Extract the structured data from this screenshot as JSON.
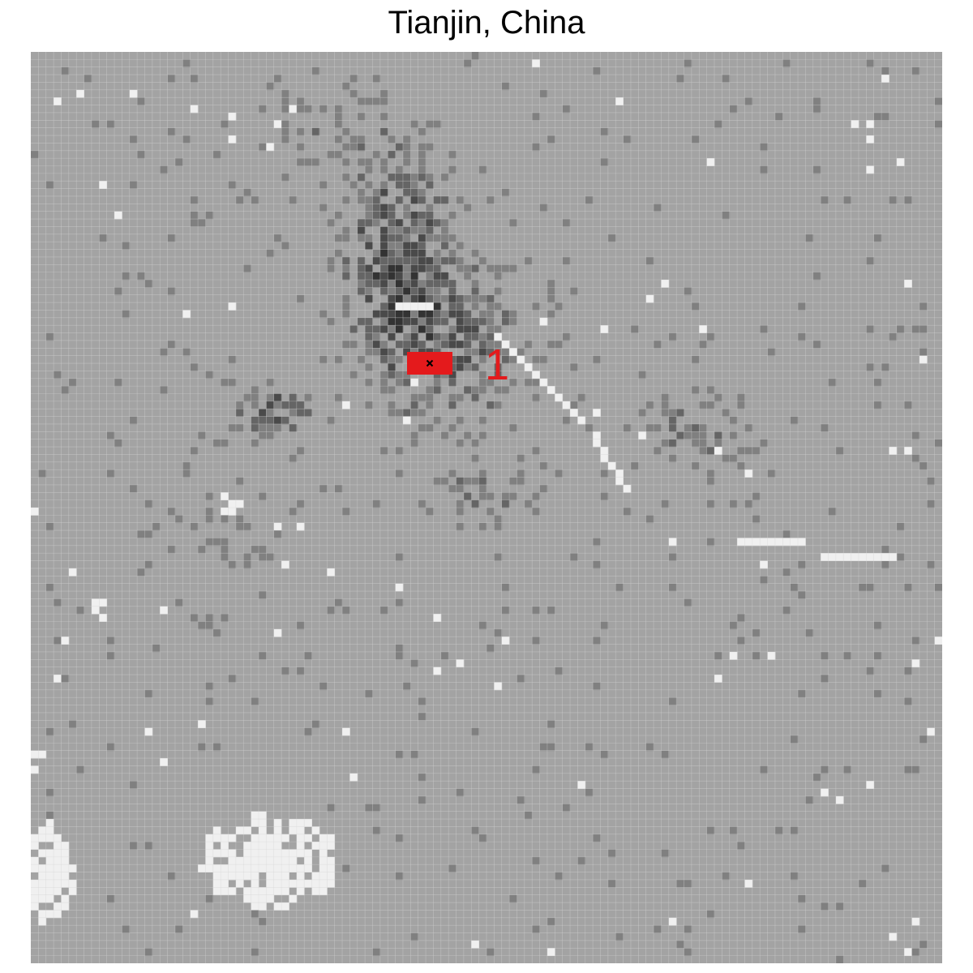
{
  "map": {
    "title": "Tianjin, China",
    "colors": {
      "background": "#ffffff",
      "base_cell": "#a3a3a3",
      "grid_line": "#d6d6d6",
      "light_cell": "#f0f0f0",
      "highlight_fill": "#e41a1c",
      "label_color": "#e41a1c",
      "center_marker": "#000000"
    },
    "grid": {
      "columns": 120,
      "rows": 120
    },
    "intensity_scale": [
      "#f2f2f2",
      "#808080",
      "#656565",
      "#4a4a4a",
      "#333333"
    ],
    "highlight": {
      "label": "1",
      "center_marker": "cross-icon"
    }
  }
}
